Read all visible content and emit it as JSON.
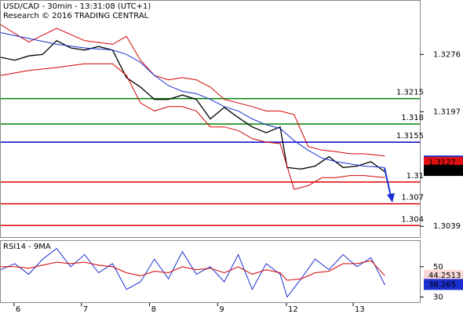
{
  "chart_data": [
    {
      "type": "line",
      "title": "USD/CAD - 30min - 13:31:08 (UTC+1)",
      "subtitle": "Research © 2016 TRADING CENTRAL",
      "xlim": [
        0,
        120
      ],
      "ylim": [
        1.3023,
        1.335
      ],
      "yticks": [
        1.3276,
        1.3197,
        1.3039
      ],
      "series": [
        {
          "name": "Price",
          "color": "#000000",
          "x": [
            0,
            4,
            8,
            12,
            16,
            20,
            24,
            28,
            32,
            36,
            40,
            44,
            48,
            52,
            56,
            60,
            64,
            68,
            72,
            76,
            80,
            82,
            86,
            90,
            94,
            98,
            102,
            106,
            110
          ],
          "values": [
            1.3272,
            1.3268,
            1.3274,
            1.3276,
            1.3295,
            1.3285,
            1.3282,
            1.3287,
            1.3282,
            1.3244,
            1.3231,
            1.3214,
            1.3214,
            1.322,
            1.3214,
            1.3187,
            1.3203,
            1.3189,
            1.3176,
            1.3168,
            1.3176,
            1.312,
            1.3118,
            1.3122,
            1.3135,
            1.312,
            1.3122,
            1.3128,
            1.3114
          ]
        },
        {
          "name": "Upper band",
          "color": "#d40000",
          "x": [
            0,
            8,
            16,
            24,
            32,
            36,
            40,
            44,
            48,
            52,
            56,
            60,
            64,
            68,
            72,
            76,
            80,
            84,
            88,
            92,
            96,
            100,
            104,
            110
          ],
          "values": [
            1.3317,
            1.3293,
            1.3312,
            1.3295,
            1.329,
            1.3301,
            1.3268,
            1.3247,
            1.3241,
            1.3244,
            1.3241,
            1.3231,
            1.3214,
            1.3209,
            1.3204,
            1.3198,
            1.3198,
            1.3193,
            1.3149,
            1.3144,
            1.3142,
            1.3139,
            1.3139,
            1.3136
          ]
        },
        {
          "name": "Lower band",
          "color": "#d40000",
          "x": [
            0,
            8,
            16,
            24,
            32,
            36,
            40,
            44,
            48,
            52,
            56,
            60,
            64,
            68,
            72,
            76,
            80,
            84,
            88,
            92,
            96,
            100,
            104,
            110
          ],
          "values": [
            1.3247,
            1.3254,
            1.3258,
            1.3263,
            1.3263,
            1.3247,
            1.3209,
            1.3198,
            1.3204,
            1.3204,
            1.3198,
            1.3176,
            1.3176,
            1.3171,
            1.316,
            1.3155,
            1.3153,
            1.309,
            1.3095,
            1.3106,
            1.3106,
            1.3109,
            1.3109,
            1.3106
          ]
        },
        {
          "name": "Moving average",
          "color": "#1a2fd0",
          "x": [
            0,
            8,
            16,
            24,
            32,
            36,
            40,
            44,
            48,
            52,
            56,
            60,
            64,
            68,
            72,
            76,
            80,
            84,
            88,
            92,
            96,
            100,
            104,
            110
          ],
          "values": [
            1.3306,
            1.3298,
            1.329,
            1.3285,
            1.3282,
            1.3276,
            1.3265,
            1.3247,
            1.3233,
            1.3225,
            1.3222,
            1.3214,
            1.3204,
            1.3198,
            1.3187,
            1.3179,
            1.3174,
            1.3157,
            1.3144,
            1.3133,
            1.3128,
            1.3125,
            1.3122,
            1.312
          ]
        }
      ],
      "levels": [
        {
          "value": 1.3215,
          "color": "#008000"
        },
        {
          "value": 1.318,
          "color": "#008000"
        },
        {
          "value": 1.3155,
          "color": "#0000cc"
        },
        {
          "value": 1.31,
          "color": "#dd0000"
        },
        {
          "value": 1.307,
          "color": "#dd0000"
        },
        {
          "value": 1.304,
          "color": "#dd0000"
        }
      ],
      "markers": [
        {
          "value": 1.3129,
          "color": "#1a2fd0",
          "filled": true
        },
        {
          "value": 1.3127,
          "color": "#e01010",
          "filled": true
        },
        {
          "value": 1.3116,
          "color": "#000000",
          "filled": true
        }
      ]
    },
    {
      "type": "line",
      "title": "RSI14 - 9MA",
      "xlim": [
        0,
        120
      ],
      "ylim": [
        26,
        67
      ],
      "yticks": [
        50,
        30
      ],
      "xticks": [
        {
          "value": 3.8,
          "label": "6"
        },
        {
          "value": 23.1,
          "label": "7"
        },
        {
          "value": 42.6,
          "label": "8"
        },
        {
          "value": 62.1,
          "label": "9"
        },
        {
          "value": 81.8,
          "label": "12"
        },
        {
          "value": 100.9,
          "label": "13"
        }
      ],
      "series": [
        {
          "name": "RSI14",
          "color": "#1a2fd0",
          "x": [
            0,
            4,
            8,
            12,
            16,
            20,
            24,
            28,
            32,
            36,
            40,
            44,
            48,
            52,
            56,
            60,
            64,
            68,
            72,
            76,
            80,
            82,
            86,
            90,
            94,
            98,
            102,
            106,
            110
          ],
          "values": [
            48,
            52,
            45,
            55,
            62,
            50,
            58,
            46,
            52,
            35,
            40,
            55,
            42,
            60,
            45,
            50,
            40,
            58,
            35,
            52,
            45,
            30,
            42,
            55,
            48,
            58,
            50,
            56,
            38
          ]
        },
        {
          "name": "9MA",
          "color": "#d40000",
          "x": [
            0,
            4,
            8,
            12,
            16,
            20,
            24,
            28,
            32,
            36,
            40,
            44,
            48,
            52,
            56,
            60,
            64,
            68,
            72,
            76,
            80,
            82,
            86,
            90,
            94,
            98,
            102,
            106,
            110
          ],
          "values": [
            50,
            50,
            49,
            51,
            53,
            52,
            53,
            51,
            50,
            46,
            44,
            47,
            46,
            50,
            48,
            49,
            46,
            50,
            45,
            48,
            46,
            41,
            42,
            46,
            47,
            52,
            52,
            54,
            44
          ]
        }
      ],
      "markers": [
        {
          "value": 44.2513,
          "color": "#e01010",
          "filled": false
        },
        {
          "value": 38.265,
          "color": "#1a2fd0",
          "filled": true
        }
      ]
    }
  ]
}
